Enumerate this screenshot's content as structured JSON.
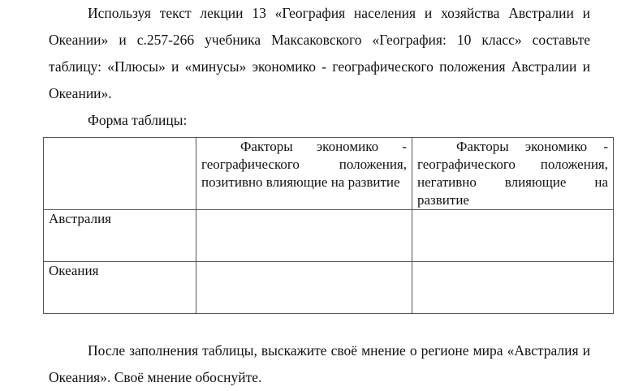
{
  "intro": "Используя текст лекции 13 «География населения и хозяйства Австралии и Океании» и с.257-266 учебника Максаковского «География: 10 класс» составьте таблицу: «Плюсы» и «минусы» экономико - географического положения Австралии и Океании».",
  "form_label": "Форма таблицы:",
  "table": {
    "headers": [
      "",
      "Факторы экономико - географического положения, позитивно влияющие на развитие",
      "Факторы экономико - географического положения, негативно влияющие на развитие"
    ],
    "rows": [
      [
        "Австралия",
        "",
        ""
      ],
      [
        "Океания",
        "",
        ""
      ]
    ]
  },
  "closing": "После заполнения таблицы, выскажите своё мнение о регионе мира «Австралия и Океания». Своё мнение обоснуйте."
}
